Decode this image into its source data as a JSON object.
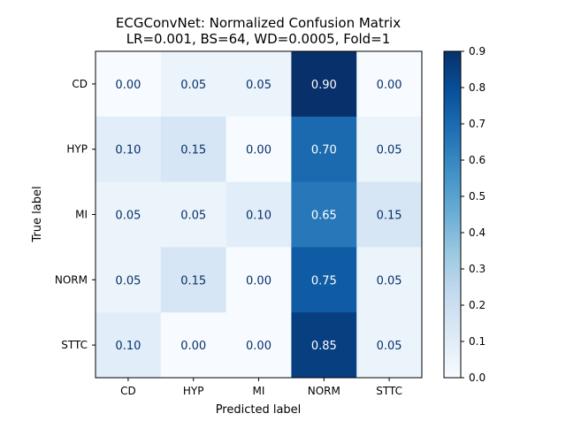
{
  "chart_data": {
    "type": "heatmap",
    "title": "ECGConvNet: Normalized Confusion Matrix",
    "subtitle": "LR=0.001, BS=64, WD=0.0005, Fold=1",
    "xlabel": "Predicted label",
    "ylabel": "True label",
    "x_categories": [
      "CD",
      "HYP",
      "MI",
      "NORM",
      "STTC"
    ],
    "y_categories": [
      "CD",
      "HYP",
      "MI",
      "NORM",
      "STTC"
    ],
    "values": [
      [
        0.0,
        0.05,
        0.05,
        0.9,
        0.0
      ],
      [
        0.1,
        0.15,
        0.0,
        0.7,
        0.05
      ],
      [
        0.05,
        0.05,
        0.1,
        0.65,
        0.15
      ],
      [
        0.05,
        0.15,
        0.0,
        0.75,
        0.05
      ],
      [
        0.1,
        0.0,
        0.0,
        0.85,
        0.05
      ]
    ],
    "value_format": "0.00",
    "colormap": "Blues",
    "colorbar": {
      "range": [
        0.0,
        0.9
      ],
      "ticks": [
        "0.0",
        "0.1",
        "0.2",
        "0.3",
        "0.4",
        "0.5",
        "0.6",
        "0.7",
        "0.8",
        "0.9"
      ]
    }
  }
}
